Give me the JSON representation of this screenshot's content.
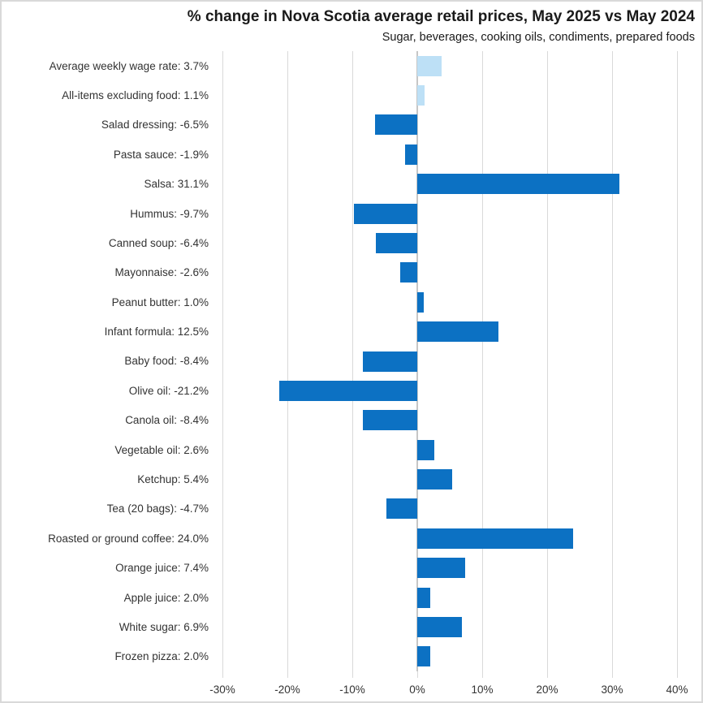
{
  "colors": {
    "bar": "#0C71C3",
    "highlight_bar": "#BDE0F6",
    "gridline": "#D9D9D9",
    "axis_line": "#C6C6C6",
    "text": "#333333",
    "title_text": "#1A1A1A"
  },
  "chart_data": {
    "type": "bar",
    "orientation": "horizontal",
    "title": "% change in Nova Scotia average retail prices, May 2025 vs May 2024",
    "subtitle": "Sugar, beverages, cooking oils, condiments, prepared foods",
    "xlabel": "",
    "ylabel": "",
    "xlim": [
      -30,
      40
    ],
    "x_tick_values": [
      -30,
      -20,
      -10,
      0,
      10,
      20,
      30,
      40
    ],
    "x_tick_labels": [
      "-30%",
      "-20%",
      "-10%",
      "0%",
      "10%",
      "20%",
      "30%",
      "40%"
    ],
    "grid": true,
    "legend": false,
    "items": [
      {
        "label": "Average weekly wage rate: 3.7%",
        "category": "Average weekly wage rate",
        "value": 3.7,
        "highlight": true
      },
      {
        "label": "All-items excluding food: 1.1%",
        "category": "All-items excluding food",
        "value": 1.1,
        "highlight": true
      },
      {
        "label": "Salad dressing: -6.5%",
        "category": "Salad dressing",
        "value": -6.5,
        "highlight": false
      },
      {
        "label": "Pasta sauce: -1.9%",
        "category": "Pasta sauce",
        "value": -1.9,
        "highlight": false
      },
      {
        "label": "Salsa: 31.1%",
        "category": "Salsa",
        "value": 31.1,
        "highlight": false
      },
      {
        "label": "Hummus: -9.7%",
        "category": "Hummus",
        "value": -9.7,
        "highlight": false
      },
      {
        "label": "Canned soup: -6.4%",
        "category": "Canned soup",
        "value": -6.4,
        "highlight": false
      },
      {
        "label": "Mayonnaise: -2.6%",
        "category": "Mayonnaise",
        "value": -2.6,
        "highlight": false
      },
      {
        "label": "Peanut butter: 1.0%",
        "category": "Peanut butter",
        "value": 1.0,
        "highlight": false
      },
      {
        "label": "Infant formula: 12.5%",
        "category": "Infant formula",
        "value": 12.5,
        "highlight": false
      },
      {
        "label": "Baby food: -8.4%",
        "category": "Baby food",
        "value": -8.4,
        "highlight": false
      },
      {
        "label": "Olive oil: -21.2%",
        "category": "Olive oil",
        "value": -21.2,
        "highlight": false
      },
      {
        "label": "Canola oil: -8.4%",
        "category": "Canola oil",
        "value": -8.4,
        "highlight": false
      },
      {
        "label": "Vegetable oil: 2.6%",
        "category": "Vegetable oil",
        "value": 2.6,
        "highlight": false
      },
      {
        "label": "Ketchup: 5.4%",
        "category": "Ketchup",
        "value": 5.4,
        "highlight": false
      },
      {
        "label": "Tea (20 bags): -4.7%",
        "category": "Tea (20 bags)",
        "value": -4.7,
        "highlight": false
      },
      {
        "label": "Roasted or ground coffee: 24.0%",
        "category": "Roasted or ground coffee",
        "value": 24.0,
        "highlight": false
      },
      {
        "label": "Orange juice: 7.4%",
        "category": "Orange juice",
        "value": 7.4,
        "highlight": false
      },
      {
        "label": "Apple juice: 2.0%",
        "category": "Apple juice",
        "value": 2.0,
        "highlight": false
      },
      {
        "label": "White sugar: 6.9%",
        "category": "White sugar",
        "value": 6.9,
        "highlight": false
      },
      {
        "label": "Frozen pizza: 2.0%",
        "category": "Frozen pizza",
        "value": 2.0,
        "highlight": false
      }
    ]
  }
}
